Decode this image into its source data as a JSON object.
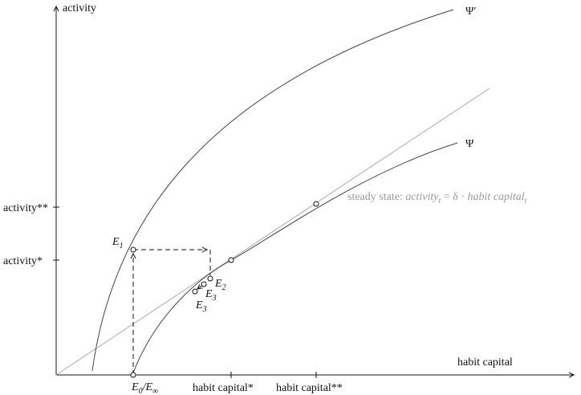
{
  "axes": {
    "y_label": "activity",
    "x_label": "habit capital"
  },
  "y_ticks": [
    "activity**",
    "activity*"
  ],
  "x_ticks": [
    "habit capital*",
    "habit capital**"
  ],
  "curves": {
    "upper": "Ψ′",
    "lower": "Ψ"
  },
  "points": [
    {
      "letter": "E",
      "sub": "1"
    },
    {
      "letter": "E",
      "sub": "2"
    },
    {
      "letter": "E",
      "sub": "3"
    },
    {
      "letter": "E",
      "sub": "3"
    },
    {
      "letter": "E",
      "sub": "0",
      "rest": "/E",
      "sub2": "∞"
    }
  ],
  "steady_state": {
    "prefix": "steady state: ",
    "lhs": "activity",
    "lhs_sub": "t",
    "op": " = δ · ",
    "rhs": "habit capital",
    "rhs_sub": "t"
  }
}
